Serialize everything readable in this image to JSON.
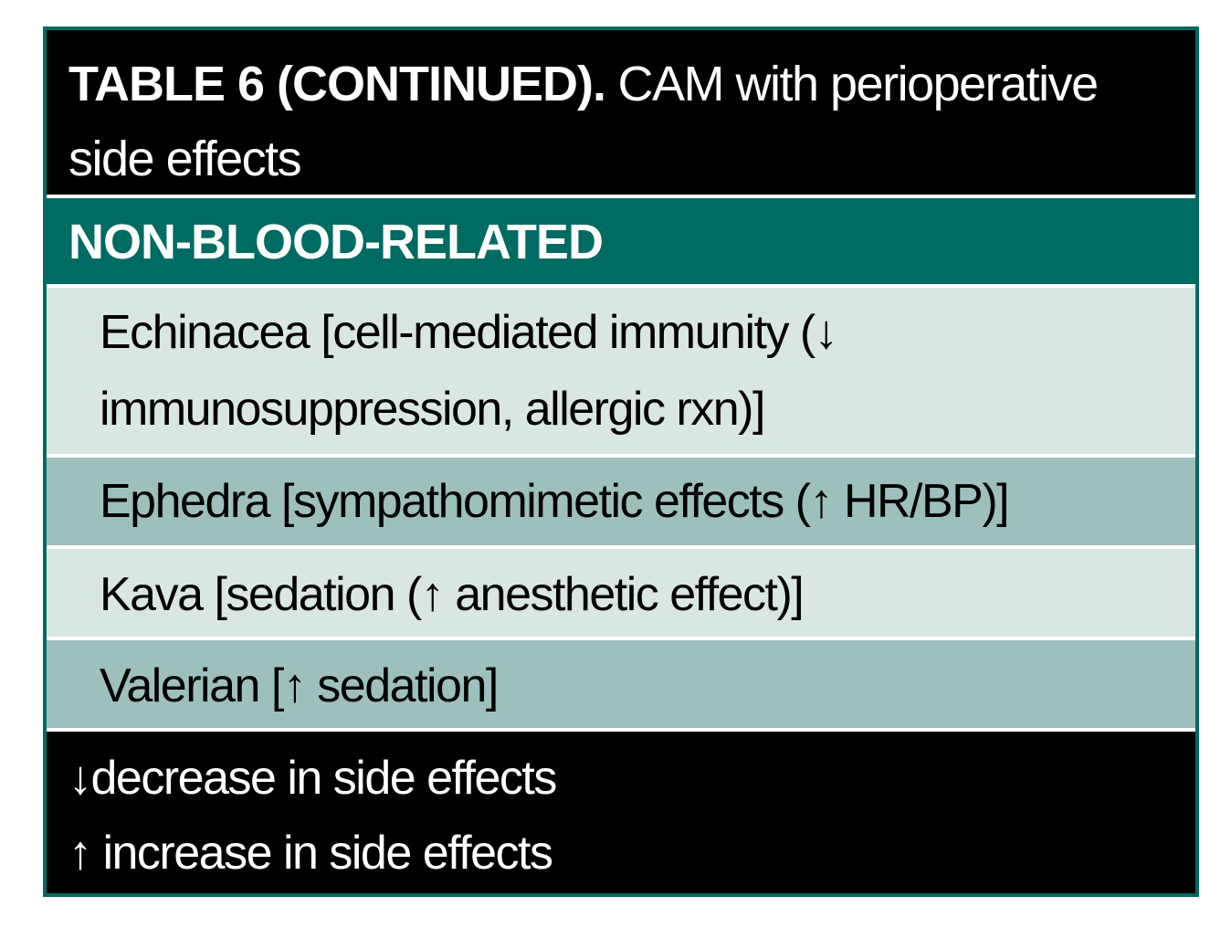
{
  "table": {
    "title_label": "TABLE 6 (CONTINUED).",
    "title_text": " CAM with perioperative side effects",
    "section_heading": "NON-BLOOD-RELATED",
    "rows": [
      {
        "line_1": "Echinacea [cell-mediated immunity (↓",
        "line_2": "immunosuppression, allergic rxn)]"
      },
      {
        "text": "Ephedra [sympathomimetic effects (↑ HR/BP)]"
      },
      {
        "text": "Kava [sedation (↑ anesthetic effect)]"
      },
      {
        "text": "Valerian [↑ sedation]"
      }
    ],
    "legend": [
      {
        "text": "↓decrease in side effects"
      },
      {
        "text": "↑ increase in side effects"
      }
    ]
  },
  "colors": {
    "teal": "#006b63",
    "row_light": "#d9e6e4",
    "row_mid": "#9dc0bc",
    "band": "#000000"
  }
}
